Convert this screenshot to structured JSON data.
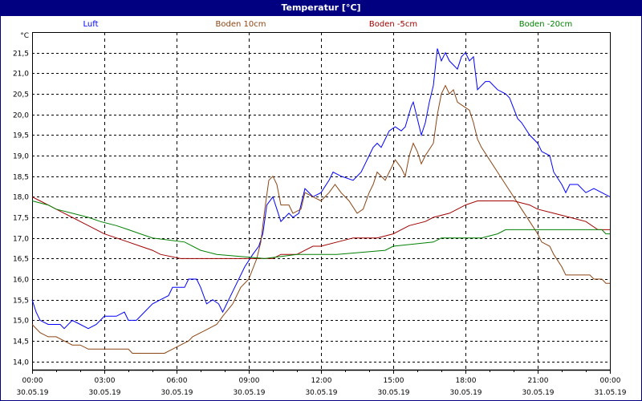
{
  "window": {
    "title": "Temperatur [°C]"
  },
  "chart_data": {
    "type": "line",
    "title": "Temperatur [°C]",
    "ylabel": "°C",
    "ylim": [
      13.8,
      22.0
    ],
    "yticks": [
      "14,0",
      "14,5",
      "15,0",
      "15,5",
      "16,0",
      "16,5",
      "17,0",
      "17,5",
      "18,0",
      "18,5",
      "19,0",
      "19,5",
      "20,0",
      "20,5",
      "21,0",
      "21,5"
    ],
    "ytick_values": [
      14.0,
      14.5,
      15.0,
      15.5,
      16.0,
      16.5,
      17.0,
      17.5,
      18.0,
      18.5,
      19.0,
      19.5,
      20.0,
      20.5,
      21.0,
      21.5
    ],
    "xlim": [
      "30.05.19 00:00",
      "31.05.19 00:00"
    ],
    "xticks": [
      {
        "time": "00:00",
        "date": "30.05.19"
      },
      {
        "time": "03:00",
        "date": "30.05.19"
      },
      {
        "time": "06:00",
        "date": "30.05.19"
      },
      {
        "time": "09:00",
        "date": "30.05.19"
      },
      {
        "time": "12:00",
        "date": "30.05.19"
      },
      {
        "time": "15:00",
        "date": "30.05.19"
      },
      {
        "time": "18:00",
        "date": "30.05.19"
      },
      {
        "time": "21:00",
        "date": "30.05.19"
      },
      {
        "time": "00:00",
        "date": "31.05.19"
      }
    ],
    "grid": true,
    "legend_placement": "top",
    "series": [
      {
        "name": "Luft",
        "color": "#0000ff",
        "points": [
          [
            "00:00",
            15.5
          ],
          [
            "00:10",
            15.2
          ],
          [
            "00:20",
            15.0
          ],
          [
            "00:40",
            14.9
          ],
          [
            "01:10",
            14.9
          ],
          [
            "01:20",
            14.8
          ],
          [
            "01:40",
            15.0
          ],
          [
            "02:00",
            14.9
          ],
          [
            "02:20",
            14.8
          ],
          [
            "02:40",
            14.9
          ],
          [
            "03:00",
            15.1
          ],
          [
            "03:30",
            15.1
          ],
          [
            "03:50",
            15.2
          ],
          [
            "04:00",
            15.0
          ],
          [
            "04:20",
            15.0
          ],
          [
            "04:40",
            15.2
          ],
          [
            "05:00",
            15.4
          ],
          [
            "05:20",
            15.5
          ],
          [
            "05:40",
            15.6
          ],
          [
            "05:50",
            15.8
          ],
          [
            "06:20",
            15.8
          ],
          [
            "06:30",
            16.0
          ],
          [
            "06:50",
            16.0
          ],
          [
            "07:00",
            15.8
          ],
          [
            "07:15",
            15.4
          ],
          [
            "07:30",
            15.5
          ],
          [
            "07:45",
            15.4
          ],
          [
            "07:55",
            15.2
          ],
          [
            "08:10",
            15.5
          ],
          [
            "08:30",
            15.9
          ],
          [
            "08:50",
            16.3
          ],
          [
            "09:10",
            16.6
          ],
          [
            "09:25",
            16.8
          ],
          [
            "09:35",
            17.1
          ],
          [
            "09:45",
            17.8
          ],
          [
            "10:00",
            18.0
          ],
          [
            "10:10",
            17.7
          ],
          [
            "10:20",
            17.4
          ],
          [
            "10:40",
            17.6
          ],
          [
            "10:50",
            17.5
          ],
          [
            "11:05",
            17.6
          ],
          [
            "11:20",
            18.2
          ],
          [
            "11:40",
            18.0
          ],
          [
            "12:00",
            18.1
          ],
          [
            "12:20",
            18.4
          ],
          [
            "12:30",
            18.6
          ],
          [
            "12:50",
            18.5
          ],
          [
            "13:20",
            18.4
          ],
          [
            "13:40",
            18.6
          ],
          [
            "13:50",
            18.8
          ],
          [
            "14:00",
            19.0
          ],
          [
            "14:10",
            19.2
          ],
          [
            "14:20",
            19.3
          ],
          [
            "14:30",
            19.2
          ],
          [
            "14:40",
            19.4
          ],
          [
            "14:50",
            19.6
          ],
          [
            "15:05",
            19.7
          ],
          [
            "15:20",
            19.6
          ],
          [
            "15:30",
            19.7
          ],
          [
            "15:45",
            20.2
          ],
          [
            "15:50",
            20.3
          ],
          [
            "16:00",
            19.9
          ],
          [
            "16:10",
            19.5
          ],
          [
            "16:20",
            19.8
          ],
          [
            "16:30",
            20.3
          ],
          [
            "16:40",
            20.7
          ],
          [
            "16:50",
            21.6
          ],
          [
            "17:00",
            21.3
          ],
          [
            "17:10",
            21.5
          ],
          [
            "17:20",
            21.3
          ],
          [
            "17:40",
            21.1
          ],
          [
            "17:50",
            21.4
          ],
          [
            "18:00",
            21.5
          ],
          [
            "18:10",
            21.3
          ],
          [
            "18:20",
            21.4
          ],
          [
            "18:30",
            20.6
          ],
          [
            "18:40",
            20.7
          ],
          [
            "18:50",
            20.8
          ],
          [
            "19:00",
            20.8
          ],
          [
            "19:20",
            20.6
          ],
          [
            "19:40",
            20.5
          ],
          [
            "19:50",
            20.4
          ],
          [
            "20:10",
            19.9
          ],
          [
            "20:20",
            19.8
          ],
          [
            "20:40",
            19.5
          ],
          [
            "21:00",
            19.3
          ],
          [
            "21:10",
            19.1
          ],
          [
            "21:30",
            19.0
          ],
          [
            "21:40",
            18.6
          ],
          [
            "22:00",
            18.3
          ],
          [
            "22:10",
            18.1
          ],
          [
            "22:20",
            18.3
          ],
          [
            "22:40",
            18.3
          ],
          [
            "23:00",
            18.1
          ],
          [
            "23:20",
            18.2
          ],
          [
            "23:40",
            18.1
          ],
          [
            "24:00",
            18.0
          ]
        ]
      },
      {
        "name": "Boden 10cm",
        "color": "#8b4513",
        "points": [
          [
            "00:00",
            14.9
          ],
          [
            "00:20",
            14.7
          ],
          [
            "00:40",
            14.6
          ],
          [
            "01:00",
            14.6
          ],
          [
            "01:20",
            14.5
          ],
          [
            "01:40",
            14.4
          ],
          [
            "02:00",
            14.4
          ],
          [
            "02:20",
            14.3
          ],
          [
            "04:00",
            14.3
          ],
          [
            "04:10",
            14.2
          ],
          [
            "05:30",
            14.2
          ],
          [
            "05:50",
            14.3
          ],
          [
            "06:10",
            14.4
          ],
          [
            "06:30",
            14.5
          ],
          [
            "06:40",
            14.6
          ],
          [
            "07:00",
            14.7
          ],
          [
            "07:20",
            14.8
          ],
          [
            "07:40",
            14.9
          ],
          [
            "07:55",
            15.1
          ],
          [
            "08:20",
            15.4
          ],
          [
            "08:40",
            15.8
          ],
          [
            "09:00",
            16.0
          ],
          [
            "09:20",
            16.5
          ],
          [
            "09:30",
            16.9
          ],
          [
            "09:40",
            17.7
          ],
          [
            "09:50",
            18.4
          ],
          [
            "10:00",
            18.5
          ],
          [
            "10:10",
            18.3
          ],
          [
            "10:20",
            17.8
          ],
          [
            "10:40",
            17.8
          ],
          [
            "10:50",
            17.6
          ],
          [
            "11:10",
            17.7
          ],
          [
            "11:20",
            18.1
          ],
          [
            "11:40",
            18.0
          ],
          [
            "12:00",
            17.9
          ],
          [
            "12:20",
            18.1
          ],
          [
            "12:35",
            18.3
          ],
          [
            "12:50",
            18.1
          ],
          [
            "13:10",
            17.9
          ],
          [
            "13:30",
            17.6
          ],
          [
            "13:45",
            17.7
          ],
          [
            "14:00",
            18.1
          ],
          [
            "14:10",
            18.3
          ],
          [
            "14:20",
            18.6
          ],
          [
            "14:40",
            18.4
          ],
          [
            "14:50",
            18.6
          ],
          [
            "15:05",
            18.9
          ],
          [
            "15:20",
            18.7
          ],
          [
            "15:30",
            18.5
          ],
          [
            "15:40",
            19.0
          ],
          [
            "15:50",
            19.3
          ],
          [
            "16:00",
            19.1
          ],
          [
            "16:10",
            18.8
          ],
          [
            "16:20",
            19.0
          ],
          [
            "16:40",
            19.3
          ],
          [
            "16:50",
            20.0
          ],
          [
            "17:00",
            20.5
          ],
          [
            "17:10",
            20.7
          ],
          [
            "17:20",
            20.5
          ],
          [
            "17:30",
            20.6
          ],
          [
            "17:40",
            20.3
          ],
          [
            "17:55",
            20.2
          ],
          [
            "18:10",
            20.1
          ],
          [
            "18:20",
            19.8
          ],
          [
            "18:30",
            19.4
          ],
          [
            "18:40",
            19.2
          ],
          [
            "19:00",
            18.9
          ],
          [
            "19:20",
            18.6
          ],
          [
            "19:40",
            18.3
          ],
          [
            "20:00",
            18.0
          ],
          [
            "20:20",
            17.7
          ],
          [
            "20:40",
            17.4
          ],
          [
            "21:00",
            17.1
          ],
          [
            "21:10",
            16.9
          ],
          [
            "21:30",
            16.8
          ],
          [
            "21:40",
            16.6
          ],
          [
            "22:00",
            16.3
          ],
          [
            "22:10",
            16.1
          ],
          [
            "23:10",
            16.1
          ],
          [
            "23:20",
            16.0
          ],
          [
            "23:40",
            16.0
          ],
          [
            "23:50",
            15.9
          ],
          [
            "24:00",
            15.9
          ]
        ]
      },
      {
        "name": "Boden -5cm",
        "color": "#a00000",
        "points": [
          [
            "00:00",
            18.0
          ],
          [
            "00:20",
            17.9
          ],
          [
            "00:40",
            17.8
          ],
          [
            "01:00",
            17.7
          ],
          [
            "01:20",
            17.6
          ],
          [
            "01:40",
            17.5
          ],
          [
            "02:00",
            17.4
          ],
          [
            "02:20",
            17.3
          ],
          [
            "03:00",
            17.1
          ],
          [
            "03:30",
            17.0
          ],
          [
            "04:00",
            16.9
          ],
          [
            "04:30",
            16.8
          ],
          [
            "05:00",
            16.7
          ],
          [
            "05:20",
            16.6
          ],
          [
            "06:10",
            16.5
          ],
          [
            "10:00",
            16.5
          ],
          [
            "10:20",
            16.6
          ],
          [
            "11:00",
            16.6
          ],
          [
            "11:20",
            16.7
          ],
          [
            "11:40",
            16.8
          ],
          [
            "12:00",
            16.8
          ],
          [
            "12:40",
            16.9
          ],
          [
            "13:20",
            17.0
          ],
          [
            "14:20",
            17.0
          ],
          [
            "15:00",
            17.1
          ],
          [
            "15:20",
            17.2
          ],
          [
            "15:40",
            17.3
          ],
          [
            "16:20",
            17.4
          ],
          [
            "16:40",
            17.5
          ],
          [
            "17:20",
            17.6
          ],
          [
            "17:40",
            17.7
          ],
          [
            "18:00",
            17.8
          ],
          [
            "18:30",
            17.9
          ],
          [
            "20:00",
            17.9
          ],
          [
            "20:40",
            17.8
          ],
          [
            "21:00",
            17.7
          ],
          [
            "21:40",
            17.6
          ],
          [
            "22:20",
            17.5
          ],
          [
            "23:00",
            17.4
          ],
          [
            "23:30",
            17.2
          ],
          [
            "24:00",
            17.2
          ]
        ]
      },
      {
        "name": "Boden -20cm",
        "color": "#008000",
        "points": [
          [
            "00:00",
            17.9
          ],
          [
            "00:40",
            17.8
          ],
          [
            "01:00",
            17.7
          ],
          [
            "01:40",
            17.6
          ],
          [
            "02:20",
            17.5
          ],
          [
            "02:50",
            17.4
          ],
          [
            "03:30",
            17.3
          ],
          [
            "04:00",
            17.2
          ],
          [
            "04:30",
            17.1
          ],
          [
            "05:00",
            17.0
          ],
          [
            "06:20",
            16.9
          ],
          [
            "07:00",
            16.7
          ],
          [
            "07:40",
            16.6
          ],
          [
            "09:40",
            16.5
          ],
          [
            "11:00",
            16.6
          ],
          [
            "12:40",
            16.6
          ],
          [
            "14:40",
            16.7
          ],
          [
            "15:00",
            16.8
          ],
          [
            "16:40",
            16.9
          ],
          [
            "17:00",
            17.0
          ],
          [
            "18:40",
            17.0
          ],
          [
            "19:20",
            17.1
          ],
          [
            "19:40",
            17.2
          ],
          [
            "23:40",
            17.2
          ],
          [
            "23:50",
            17.1
          ],
          [
            "24:00",
            17.1
          ]
        ]
      }
    ]
  }
}
